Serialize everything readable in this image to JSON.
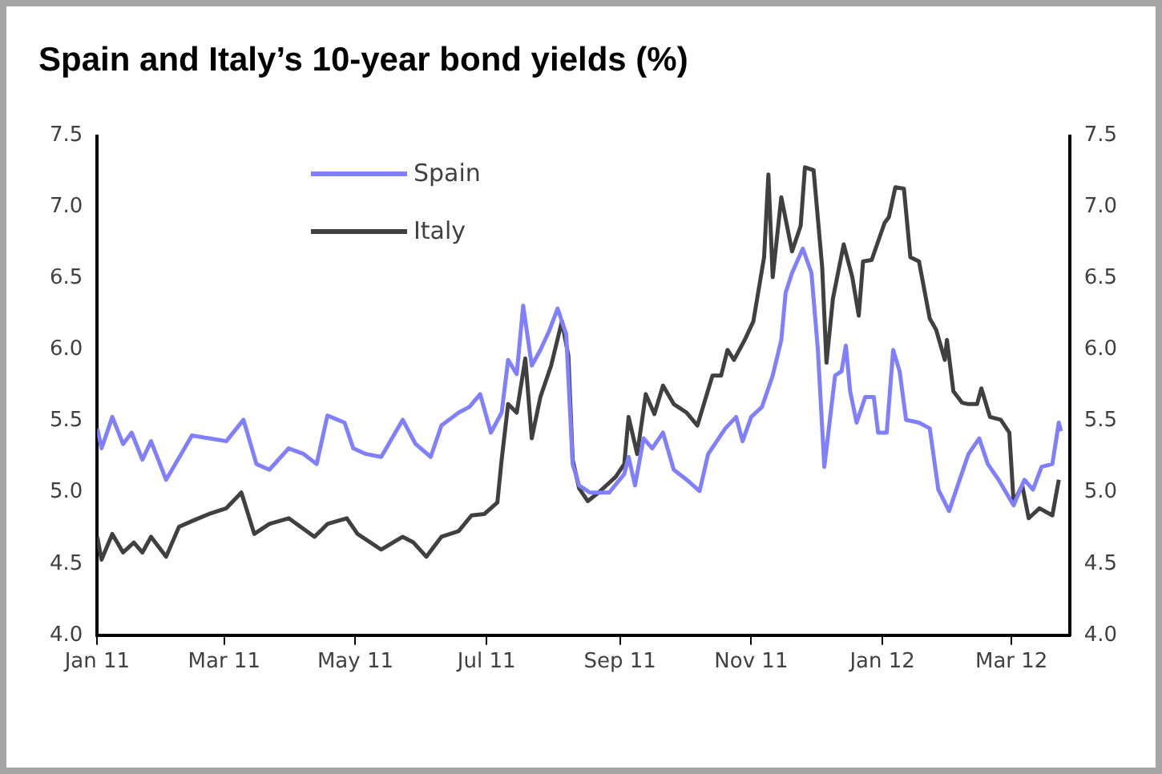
{
  "chart_data": {
    "type": "line",
    "title": "Spain and Italy’s 10-year bond yields (%)",
    "xlim": [
      "2011-01-01",
      "2012-03-28"
    ],
    "xticks": [
      {
        "value": "2011-01-01",
        "label": "Jan 11"
      },
      {
        "value": "2011-03-01",
        "label": "Mar 11"
      },
      {
        "value": "2011-05-01",
        "label": "May 11"
      },
      {
        "value": "2011-07-01",
        "label": "Jul 11"
      },
      {
        "value": "2011-09-01",
        "label": "Sep 11"
      },
      {
        "value": "2011-11-01",
        "label": "Nov 11"
      },
      {
        "value": "2012-01-01",
        "label": "Jan 12"
      },
      {
        "value": "2012-03-01",
        "label": "Mar 12"
      }
    ],
    "ylim": [
      4.0,
      7.5
    ],
    "yticks": [
      {
        "value": 4.0,
        "label": "4.0"
      },
      {
        "value": 4.5,
        "label": "4.5"
      },
      {
        "value": 5.0,
        "label": "5.0"
      },
      {
        "value": 5.5,
        "label": "5.5"
      },
      {
        "value": 6.0,
        "label": "6.0"
      },
      {
        "value": 6.5,
        "label": "6.5"
      },
      {
        "value": 7.0,
        "label": "7.0"
      },
      {
        "value": 7.5,
        "label": "7.5"
      }
    ],
    "y2lim": [
      4.0,
      7.5
    ],
    "y2ticks": [
      {
        "value": 4.0,
        "label": "4.0"
      },
      {
        "value": 4.5,
        "label": "4.5"
      },
      {
        "value": 5.0,
        "label": "5.0"
      },
      {
        "value": 5.5,
        "label": "5.5"
      },
      {
        "value": 6.0,
        "label": "6.0"
      },
      {
        "value": 6.5,
        "label": "6.5"
      },
      {
        "value": 7.0,
        "label": "7.0"
      },
      {
        "value": 7.5,
        "label": "7.5"
      }
    ],
    "grid": false,
    "legend": "top left",
    "marker": "none",
    "line_style": "solid",
    "series": [
      {
        "name": "Spain",
        "color": "#7f7fff",
        "x": [
          "2011-01-01",
          "2011-01-03",
          "2011-01-08",
          "2011-01-13",
          "2011-01-17",
          "2011-01-22",
          "2011-01-26",
          "2011-02-02",
          "2011-02-09",
          "2011-02-14",
          "2011-02-22",
          "2011-03-02",
          "2011-03-10",
          "2011-03-16",
          "2011-03-22",
          "2011-03-31",
          "2011-04-07",
          "2011-04-13",
          "2011-04-18",
          "2011-04-26",
          "2011-04-30",
          "2011-05-06",
          "2011-05-13",
          "2011-05-23",
          "2011-05-29",
          "2011-06-05",
          "2011-06-10",
          "2011-06-18",
          "2011-06-23",
          "2011-06-28",
          "2011-07-03",
          "2011-07-08",
          "2011-07-11",
          "2011-07-15",
          "2011-07-18",
          "2011-07-22",
          "2011-07-26",
          "2011-07-30",
          "2011-08-03",
          "2011-08-07",
          "2011-08-10",
          "2011-08-13",
          "2011-08-18",
          "2011-08-27",
          "2011-09-03",
          "2011-09-05",
          "2011-09-08",
          "2011-09-12",
          "2011-09-16",
          "2011-09-21",
          "2011-09-26",
          "2011-10-02",
          "2011-10-08",
          "2011-10-12",
          "2011-10-20",
          "2011-10-25",
          "2011-10-28",
          "2011-11-01",
          "2011-11-06",
          "2011-11-11",
          "2011-11-15",
          "2011-11-17",
          "2011-11-20",
          "2011-11-25",
          "2011-11-29",
          "2011-12-02",
          "2011-12-05",
          "2011-12-10",
          "2011-12-13",
          "2011-12-15",
          "2011-12-17",
          "2011-12-20",
          "2011-12-24",
          "2011-12-28",
          "2011-12-30",
          "2012-01-03",
          "2012-01-06",
          "2012-01-09",
          "2012-01-12",
          "2012-01-18",
          "2012-01-23",
          "2012-01-27",
          "2012-02-01",
          "2012-02-05",
          "2012-02-10",
          "2012-02-15",
          "2012-02-19",
          "2012-02-24",
          "2012-03-02",
          "2012-03-07",
          "2012-03-11",
          "2012-03-15",
          "2012-03-20",
          "2012-03-23",
          "2012-03-24"
        ],
        "values": [
          5.45,
          5.31,
          5.53,
          5.34,
          5.42,
          5.23,
          5.36,
          5.09,
          5.27,
          5.4,
          5.38,
          5.36,
          5.51,
          5.2,
          5.16,
          5.31,
          5.27,
          5.2,
          5.54,
          5.49,
          5.31,
          5.27,
          5.25,
          5.51,
          5.34,
          5.25,
          5.47,
          5.56,
          5.6,
          5.69,
          5.42,
          5.56,
          5.93,
          5.83,
          6.31,
          5.89,
          6.0,
          6.13,
          6.29,
          6.11,
          5.2,
          5.05,
          5.0,
          5.0,
          5.13,
          5.25,
          5.05,
          5.38,
          5.31,
          5.42,
          5.16,
          5.09,
          5.01,
          5.27,
          5.45,
          5.53,
          5.36,
          5.53,
          5.6,
          5.82,
          6.07,
          6.4,
          6.54,
          6.71,
          6.54,
          6.0,
          5.18,
          5.82,
          5.85,
          6.03,
          5.71,
          5.49,
          5.67,
          5.67,
          5.42,
          5.42,
          6.0,
          5.85,
          5.51,
          5.49,
          5.45,
          5.02,
          4.87,
          5.05,
          5.27,
          5.38,
          5.2,
          5.09,
          4.91,
          5.09,
          5.02,
          5.18,
          5.2,
          5.49,
          5.43
        ]
      },
      {
        "name": "Italy",
        "color": "#404040",
        "x": [
          "2011-01-01",
          "2011-01-03",
          "2011-01-08",
          "2011-01-13",
          "2011-01-18",
          "2011-01-22",
          "2011-01-26",
          "2011-02-02",
          "2011-02-08",
          "2011-02-14",
          "2011-02-22",
          "2011-03-02",
          "2011-03-09",
          "2011-03-15",
          "2011-03-22",
          "2011-03-31",
          "2011-04-12",
          "2011-04-18",
          "2011-04-27",
          "2011-05-02",
          "2011-05-13",
          "2011-05-23",
          "2011-05-28",
          "2011-06-03",
          "2011-06-10",
          "2011-06-18",
          "2011-06-24",
          "2011-06-30",
          "2011-07-06",
          "2011-07-08",
          "2011-07-11",
          "2011-07-15",
          "2011-07-19",
          "2011-07-22",
          "2011-07-26",
          "2011-07-31",
          "2011-08-05",
          "2011-08-08",
          "2011-08-10",
          "2011-08-13",
          "2011-08-17",
          "2011-08-22",
          "2011-08-30",
          "2011-09-03",
          "2011-09-05",
          "2011-09-09",
          "2011-09-13",
          "2011-09-17",
          "2011-09-21",
          "2011-09-26",
          "2011-10-02",
          "2011-10-07",
          "2011-10-14",
          "2011-10-18",
          "2011-10-21",
          "2011-10-24",
          "2011-10-29",
          "2011-11-02",
          "2011-11-07",
          "2011-11-09",
          "2011-11-11",
          "2011-11-15",
          "2011-11-20",
          "2011-11-24",
          "2011-11-26",
          "2011-11-30",
          "2011-12-04",
          "2011-12-06",
          "2011-12-09",
          "2011-12-14",
          "2011-12-18",
          "2011-12-21",
          "2011-12-23",
          "2011-12-27",
          "2012-01-02",
          "2012-01-04",
          "2012-01-07",
          "2012-01-11",
          "2012-01-14",
          "2012-01-18",
          "2012-01-23",
          "2012-01-26",
          "2012-01-30",
          "2012-01-31",
          "2012-02-03",
          "2012-02-07",
          "2012-02-10",
          "2012-02-14",
          "2012-02-16",
          "2012-02-20",
          "2012-02-25",
          "2012-02-29",
          "2012-03-02",
          "2012-03-06",
          "2012-03-09",
          "2012-03-14",
          "2012-03-20",
          "2012-03-23"
        ],
        "values": [
          4.69,
          4.53,
          4.71,
          4.58,
          4.65,
          4.58,
          4.69,
          4.55,
          4.76,
          4.8,
          4.85,
          4.89,
          5.0,
          4.71,
          4.78,
          4.82,
          4.69,
          4.78,
          4.82,
          4.71,
          4.6,
          4.69,
          4.65,
          4.55,
          4.69,
          4.73,
          4.84,
          4.85,
          4.93,
          5.23,
          5.62,
          5.56,
          5.94,
          5.38,
          5.67,
          5.89,
          6.2,
          5.96,
          5.23,
          5.03,
          4.94,
          5.0,
          5.11,
          5.2,
          5.53,
          5.27,
          5.69,
          5.55,
          5.75,
          5.62,
          5.56,
          5.47,
          5.82,
          5.82,
          6.0,
          5.93,
          6.07,
          6.2,
          6.65,
          7.23,
          6.51,
          7.07,
          6.69,
          6.87,
          7.28,
          7.26,
          6.58,
          5.91,
          6.36,
          6.74,
          6.51,
          6.24,
          6.62,
          6.63,
          6.89,
          6.93,
          7.14,
          7.13,
          6.65,
          6.62,
          6.22,
          6.14,
          5.93,
          6.07,
          5.71,
          5.63,
          5.62,
          5.62,
          5.73,
          5.53,
          5.51,
          5.42,
          4.93,
          5.05,
          4.82,
          4.89,
          4.84,
          5.09
        ]
      }
    ]
  }
}
